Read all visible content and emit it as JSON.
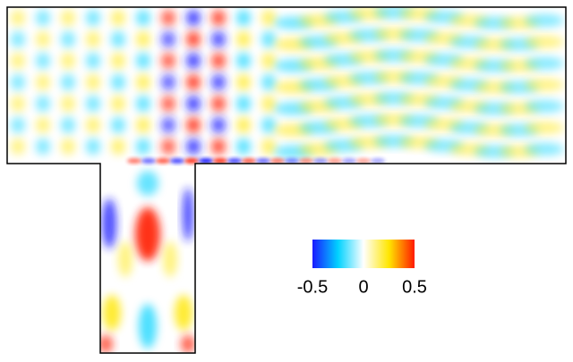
{
  "chart_data": {
    "type": "field",
    "colormap": [
      "#1a1aff",
      "#00d2ff",
      "#ffffff",
      "#ffe600",
      "#ff1a00"
    ],
    "clim": [
      -0.5,
      0.5
    ],
    "cticks": [
      -0.5,
      0,
      0.5
    ]
  }
}
